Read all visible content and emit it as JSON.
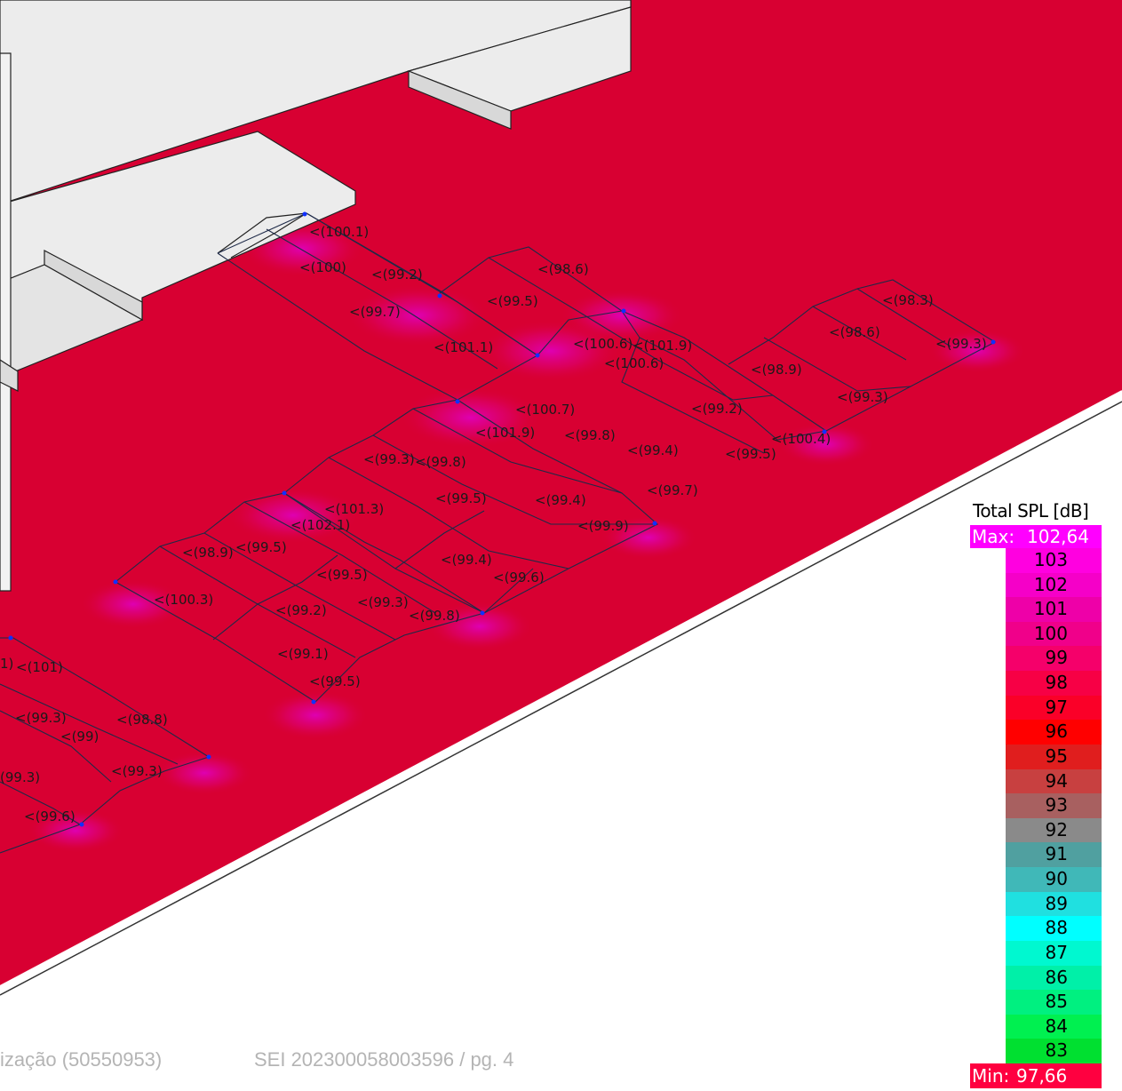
{
  "colors": {
    "floor": "#d80032",
    "building": "#ececec",
    "building_edge": "#222222",
    "truss": "#1e2a48",
    "hotspot": "#e000c8",
    "speaker_dot": "#1030ff"
  },
  "footer": {
    "left_text": "ização (50550953)",
    "right_text": "SEI 202300058003596 / pg. 4"
  },
  "legend": {
    "title": "Total SPL [dB]",
    "max_label": "Max:",
    "max_value": "102,64",
    "min_label": "Min:",
    "min_value": "97,66",
    "bins": [
      {
        "label": "103",
        "color": "#ff00e0"
      },
      {
        "label": "102",
        "color": "#f500c8"
      },
      {
        "label": "101",
        "color": "#ee00a8"
      },
      {
        "label": "100",
        "color": "#f0008a"
      },
      {
        "label": "99",
        "color": "#f5006a"
      },
      {
        "label": "98",
        "color": "#f70045"
      },
      {
        "label": "97",
        "color": "#fa0028"
      },
      {
        "label": "96",
        "color": "#ff0000"
      },
      {
        "label": "95",
        "color": "#e01e1e"
      },
      {
        "label": "94",
        "color": "#c84040"
      },
      {
        "label": "93",
        "color": "#a86060"
      },
      {
        "label": "92",
        "color": "#8a8a8a"
      },
      {
        "label": "91",
        "color": "#50a0a0"
      },
      {
        "label": "90",
        "color": "#40b8b8"
      },
      {
        "label": "89",
        "color": "#20e0e0"
      },
      {
        "label": "88",
        "color": "#00ffff"
      },
      {
        "label": "87",
        "color": "#00f8d0"
      },
      {
        "label": "86",
        "color": "#00f0a8"
      },
      {
        "label": "85",
        "color": "#00f080"
      },
      {
        "label": "84",
        "color": "#00f050"
      },
      {
        "label": "83",
        "color": "#00e030"
      }
    ]
  },
  "spl_labels": [
    {
      "text": "<(100.1)"
    },
    {
      "text": "<(100)"
    },
    {
      "text": "<(99.2)"
    },
    {
      "text": "<(98.6)"
    },
    {
      "text": "<(99.7)"
    },
    {
      "text": "<(99.5)"
    },
    {
      "text": "<(98.3)"
    },
    {
      "text": "<(98.6)"
    },
    {
      "text": "<(100.6)"
    },
    {
      "text": "<(101.9)"
    },
    {
      "text": "<(100.6)"
    },
    {
      "text": "<(101.1)"
    },
    {
      "text": "<(99.3)"
    },
    {
      "text": "<(98.9)"
    },
    {
      "text": "<(99.3)"
    },
    {
      "text": "<(100.7)"
    },
    {
      "text": "<(99.2)"
    },
    {
      "text": "<(101.9)"
    },
    {
      "text": "<(99.8)"
    },
    {
      "text": "<(100.4)"
    },
    {
      "text": "<(99.4)"
    },
    {
      "text": "<(99.5)"
    },
    {
      "text": "<(99.3)"
    },
    {
      "text": "<(99.8)"
    },
    {
      "text": "<(99.7)"
    },
    {
      "text": "<(99.5)"
    },
    {
      "text": "<(99.4)"
    },
    {
      "text": "<(101.3)"
    },
    {
      "text": "<(102.1)"
    },
    {
      "text": "<(99.9)"
    },
    {
      "text": "<(98.9)"
    },
    {
      "text": "<(99.5)"
    },
    {
      "text": "<(99.4)"
    },
    {
      "text": "<(99.5)"
    },
    {
      "text": "<(99.6)"
    },
    {
      "text": "<(100.3)"
    },
    {
      "text": "<(99.3)"
    },
    {
      "text": "<(99.2)"
    },
    {
      "text": "<(99.8)"
    },
    {
      "text": "<(99.1)"
    },
    {
      "text": "<(99.5)"
    },
    {
      "text": "1)"
    },
    {
      "text": "<(101)"
    },
    {
      "text": "<(99.3)"
    },
    {
      "text": "<(98.8)"
    },
    {
      "text": "<(99)"
    },
    {
      "text": "(99.3)"
    },
    {
      "text": "<(99.3)"
    },
    {
      "text": "<(99.6)"
    }
  ]
}
